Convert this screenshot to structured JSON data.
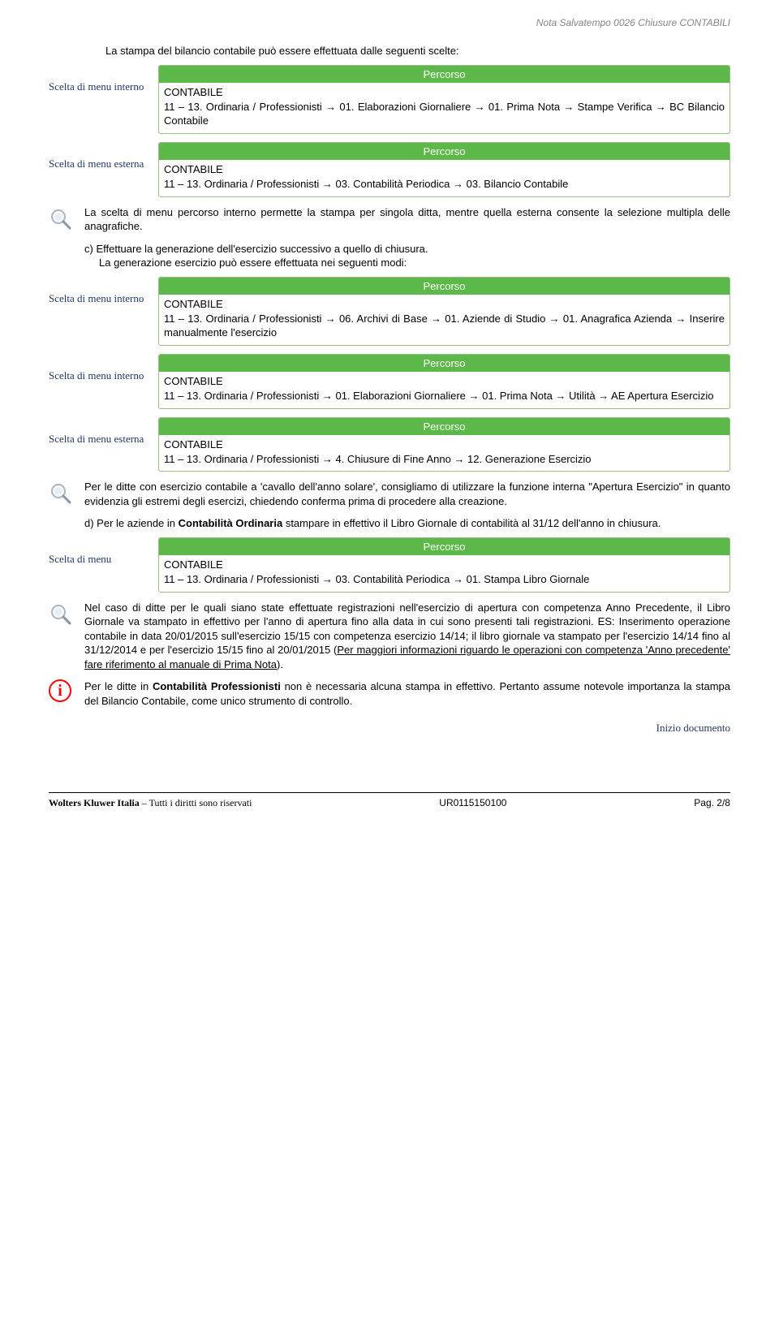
{
  "header_note": "Nota Salvatempo  0026 Chiusure CONTABILI",
  "colors": {
    "path_head_bg": "#5cb848",
    "path_head_fg": "#ffffff",
    "path_border": "#a0b890",
    "left_col_fg": "#203864",
    "info_icon": "#ff0000",
    "header_grey": "#868686"
  },
  "intro": "La stampa del bilancio contabile può essere effettuata dalle seguenti scelte:",
  "pathbox_label": "Percorso",
  "left_internal": "Scelta di menu interno",
  "left_external": "Scelta di menu esterna",
  "left_single": "Scelta di menu",
  "box1": "CONTABILE\n11 – 13. Ordinaria / Professionisti → 01. Elaborazioni Giornaliere → 01. Prima Nota → Stampe Verifica → BC Bilancio Contabile",
  "box2": "CONTABILE\n11 – 13. Ordinaria / Professionisti → 03. Contabilità Periodica → 03. Bilancio Contabile",
  "note1": "La scelta di menu percorso interno permette la stampa per singola ditta, mentre quella esterna consente la selezione multipla delle anagrafiche.",
  "step_c_line1": "c) Effettuare la generazione dell'esercizio successivo a quello di chiusura.",
  "step_c_line2": "La generazione esercizio può essere effettuata nei seguenti modi:",
  "box3": "CONTABILE\n11 – 13. Ordinaria / Professionisti → 06. Archivi di Base → 01. Aziende di Studio → 01. Anagrafica Azienda → Inserire manualmente l'esercizio",
  "box4": "CONTABILE\n11 – 13. Ordinaria / Professionisti → 01. Elaborazioni Giornaliere → 01. Prima Nota → Utilità → AE Apertura Esercizio",
  "box5": "CONTABILE\n11 – 13. Ordinaria / Professionisti → 4. Chiusure di Fine Anno → 12. Generazione Esercizio",
  "note2": "Per le ditte con esercizio contabile a 'cavallo dell'anno solare', consigliamo di utilizzare la funzione interna \"Apertura Esercizio\" in quanto evidenzia gli estremi degli esercizi, chiedendo conferma prima di procedere alla creazione.",
  "step_d_pre": "d) Per le aziende in ",
  "step_d_bold": "Contabilità Ordinaria",
  "step_d_post": " stampare in effettivo il Libro Giornale di contabilità al 31/12 dell'anno in chiusura.",
  "box6": "CONTABILE\n11 – 13. Ordinaria / Professionisti → 03. Contabilità Periodica → 01. Stampa Libro Giornale",
  "note3_part1": "Nel caso di ditte per le quali siano state effettuate registrazioni nell'esercizio di apertura con competenza Anno Precedente, il Libro Giornale va stampato in effettivo per l'anno di apertura fino alla data in cui sono presenti tali registrazioni. ES: Inserimento operazione contabile in data 20/01/2015 sull'esercizio 15/15 con competenza esercizio 14/14; il libro giornale va stampato per l'esercizio 14/14 fino al 31/12/2014 e per l'esercizio 15/15 fino al 20/01/2015 (",
  "note3_underlined": "Per maggiori informazioni riguardo le operazioni con competenza 'Anno precedente' fare riferimento al manuale di Prima Nota",
  "note3_part2": ").",
  "info_pre": "Per le ditte in ",
  "info_bold": "Contabilità Professionisti",
  "info_post": " non è necessaria alcuna stampa in effettivo. Pertanto assume notevole importanza la stampa del Bilancio Contabile, come unico strumento di controllo.",
  "link_start": "Inizio documento",
  "footer_company": "Wolters Kluwer Italia",
  "footer_rights": " – Tutti i diritti sono riservati",
  "footer_code": "UR0115150100",
  "footer_page": "Pag.  2/8"
}
